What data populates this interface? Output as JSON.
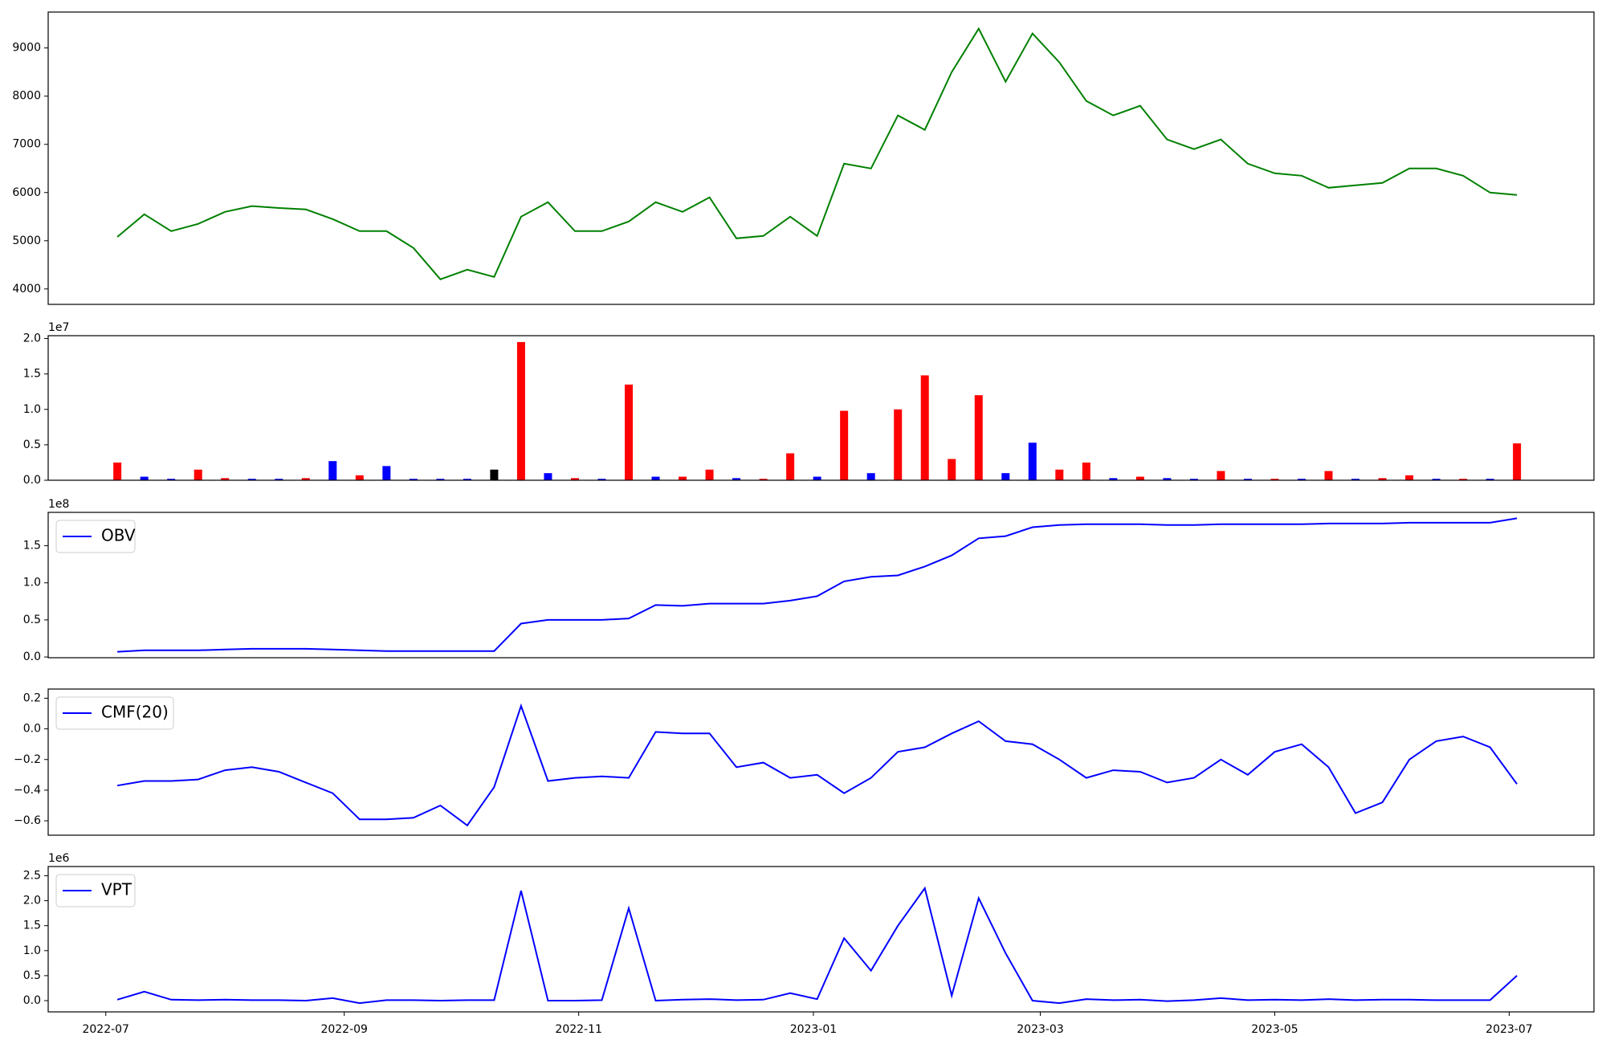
{
  "chart_data": [
    {
      "type": "line",
      "color": "#008000",
      "xlim": [
        -2.57,
        54.86
      ],
      "ylim": [
        3680,
        9745
      ],
      "yticks": [
        4000,
        5000,
        6000,
        7000,
        8000,
        9000
      ],
      "values": [
        5080,
        5550,
        5200,
        5350,
        5600,
        5720,
        5680,
        5650,
        5450,
        5200,
        5200,
        4850,
        4200,
        4400,
        4250,
        5500,
        5800,
        5200,
        5200,
        5400,
        5800,
        5600,
        5900,
        5050,
        5100,
        5500,
        5100,
        6600,
        6500,
        7600,
        7300,
        8500,
        9400,
        8300,
        9300,
        8700,
        7900,
        7600,
        7800,
        7100,
        6900,
        7100,
        6600,
        6400,
        6350,
        6100,
        6150,
        6200,
        6500,
        6500,
        6350,
        6000,
        5950
      ]
    },
    {
      "type": "bar",
      "y_offset": "1e7",
      "xlim": [
        -2.57,
        54.86
      ],
      "ylim": [
        0,
        20400000
      ],
      "yticks": [
        {
          "value": 0,
          "label": "0.0"
        },
        {
          "value": 5000000,
          "label": "0.5"
        },
        {
          "value": 10000000,
          "label": "1.0"
        },
        {
          "value": 15000000,
          "label": "1.5"
        },
        {
          "value": 20000000,
          "label": "2.0"
        }
      ],
      "values": [
        2500000,
        500000,
        200000,
        1500000,
        300000,
        200000,
        200000,
        300000,
        2700000,
        700000,
        2000000,
        200000,
        200000,
        200000,
        1500000,
        19500000,
        1000000,
        300000,
        200000,
        13500000,
        500000,
        500000,
        1500000,
        300000,
        200000,
        3800000,
        500000,
        9800000,
        1000000,
        10000000,
        14800000,
        3000000,
        12000000,
        1000000,
        5300000,
        1500000,
        2500000,
        300000,
        500000,
        300000,
        200000,
        1300000,
        200000,
        200000,
        200000,
        1300000,
        200000,
        300000,
        700000,
        200000,
        200000,
        200000,
        5200000
      ],
      "colors": [
        "#ff0000",
        "#0000ff",
        "#0000ff",
        "#ff0000",
        "#ff0000",
        "#0000ff",
        "#0000ff",
        "#ff0000",
        "#0000ff",
        "#ff0000",
        "#0000ff",
        "#0000ff",
        "#0000ff",
        "#0000ff",
        "#000000",
        "#ff0000",
        "#0000ff",
        "#ff0000",
        "#0000ff",
        "#ff0000",
        "#0000ff",
        "#ff0000",
        "#ff0000",
        "#0000ff",
        "#ff0000",
        "#ff0000",
        "#0000ff",
        "#ff0000",
        "#0000ff",
        "#ff0000",
        "#ff0000",
        "#ff0000",
        "#ff0000",
        "#0000ff",
        "#0000ff",
        "#ff0000",
        "#ff0000",
        "#0000ff",
        "#ff0000",
        "#0000ff",
        "#0000ff",
        "#ff0000",
        "#0000ff",
        "#ff0000",
        "#0000ff",
        "#ff0000",
        "#0000ff",
        "#ff0000",
        "#ff0000",
        "#0000ff",
        "#ff0000",
        "#0000ff",
        "#ff0000"
      ]
    },
    {
      "type": "line",
      "y_offset": "1e8",
      "legend": "upper left",
      "xlim": [
        -2.57,
        54.86
      ],
      "ylim": [
        -1000000,
        195000000
      ],
      "yticks": [
        {
          "value": 0,
          "label": "0.0"
        },
        {
          "value": 50000000,
          "label": "0.5"
        },
        {
          "value": 100000000,
          "label": "1.0"
        },
        {
          "value": 150000000,
          "label": "1.5"
        }
      ],
      "series": [
        {
          "name": "OBV",
          "color": "#0000ff",
          "values": [
            7000000,
            9000000,
            9000000,
            9000000,
            10000000,
            11000000,
            11000000,
            11000000,
            10000000,
            9000000,
            8000000,
            8000000,
            8000000,
            8000000,
            8000000,
            45000000,
            50000000,
            50000000,
            50000000,
            52000000,
            70000000,
            69000000,
            72000000,
            72000000,
            72000000,
            76000000,
            82000000,
            102000000,
            108000000,
            110000000,
            122000000,
            137000000,
            160000000,
            163000000,
            175000000,
            178000000,
            179000000,
            179000000,
            179000000,
            178000000,
            178000000,
            179000000,
            179000000,
            179000000,
            179000000,
            180000000,
            180000000,
            180000000,
            181000000,
            181000000,
            181000000,
            181000000,
            187000000
          ]
        }
      ]
    },
    {
      "type": "line",
      "legend": "upper left",
      "xlim": [
        -2.57,
        54.86
      ],
      "ylim": [
        -0.694,
        0.26
      ],
      "yticks": [
        {
          "value": -0.6,
          "label": "−0.6"
        },
        {
          "value": -0.4,
          "label": "−0.4"
        },
        {
          "value": -0.2,
          "label": "−0.2"
        },
        {
          "value": 0,
          "label": "0.0"
        },
        0.2
      ],
      "series": [
        {
          "name": "CMF(20)",
          "color": "#0000ff",
          "values": [
            -0.37,
            -0.34,
            -0.34,
            -0.33,
            -0.27,
            -0.25,
            -0.28,
            -0.35,
            -0.42,
            -0.59,
            -0.59,
            -0.58,
            -0.5,
            -0.63,
            -0.38,
            0.15,
            -0.34,
            -0.32,
            -0.31,
            -0.32,
            -0.02,
            -0.03,
            -0.03,
            -0.25,
            -0.22,
            -0.32,
            -0.3,
            -0.42,
            -0.32,
            -0.15,
            -0.12,
            -0.03,
            0.05,
            -0.08,
            -0.1,
            -0.2,
            -0.32,
            -0.27,
            -0.28,
            -0.35,
            -0.32,
            -0.2,
            -0.3,
            -0.15,
            -0.1,
            -0.25,
            -0.55,
            -0.48,
            -0.2,
            -0.08,
            -0.05,
            -0.12,
            -0.36
          ]
        }
      ]
    },
    {
      "type": "line",
      "y_offset": "1e6",
      "legend": "upper left",
      "xlim": [
        -2.57,
        54.86
      ],
      "ylim": [
        -225000,
        2684000
      ],
      "yticks": [
        {
          "value": 0,
          "label": "0.0"
        },
        {
          "value": 500000,
          "label": "0.5"
        },
        {
          "value": 1000000,
          "label": "1.0"
        },
        {
          "value": 1500000,
          "label": "1.5"
        },
        {
          "value": 2000000,
          "label": "2.0"
        },
        {
          "value": 2500000,
          "label": "2.5"
        }
      ],
      "xticks": [
        {
          "value": -0.43,
          "label": "2022-07"
        },
        {
          "value": 8.43,
          "label": "2022-09"
        },
        {
          "value": 17.14,
          "label": "2022-11"
        },
        {
          "value": 25.86,
          "label": "2023-01"
        },
        {
          "value": 34.29,
          "label": "2023-03"
        },
        {
          "value": 43.0,
          "label": "2023-05"
        },
        {
          "value": 51.71,
          "label": "2023-07"
        }
      ],
      "series": [
        {
          "name": "VPT",
          "color": "#0000ff",
          "values": [
            20000,
            180000,
            20000,
            10000,
            20000,
            10000,
            10000,
            0,
            50000,
            -50000,
            10000,
            10000,
            0,
            10000,
            10000,
            2200000,
            0,
            0,
            10000,
            1850000,
            0,
            20000,
            30000,
            10000,
            20000,
            150000,
            30000,
            1250000,
            600000,
            1500000,
            2250000,
            100000,
            2050000,
            950000,
            0,
            -50000,
            30000,
            10000,
            20000,
            -10000,
            10000,
            50000,
            10000,
            20000,
            10000,
            30000,
            10000,
            20000,
            20000,
            10000,
            10000,
            10000,
            500000
          ]
        }
      ]
    }
  ]
}
